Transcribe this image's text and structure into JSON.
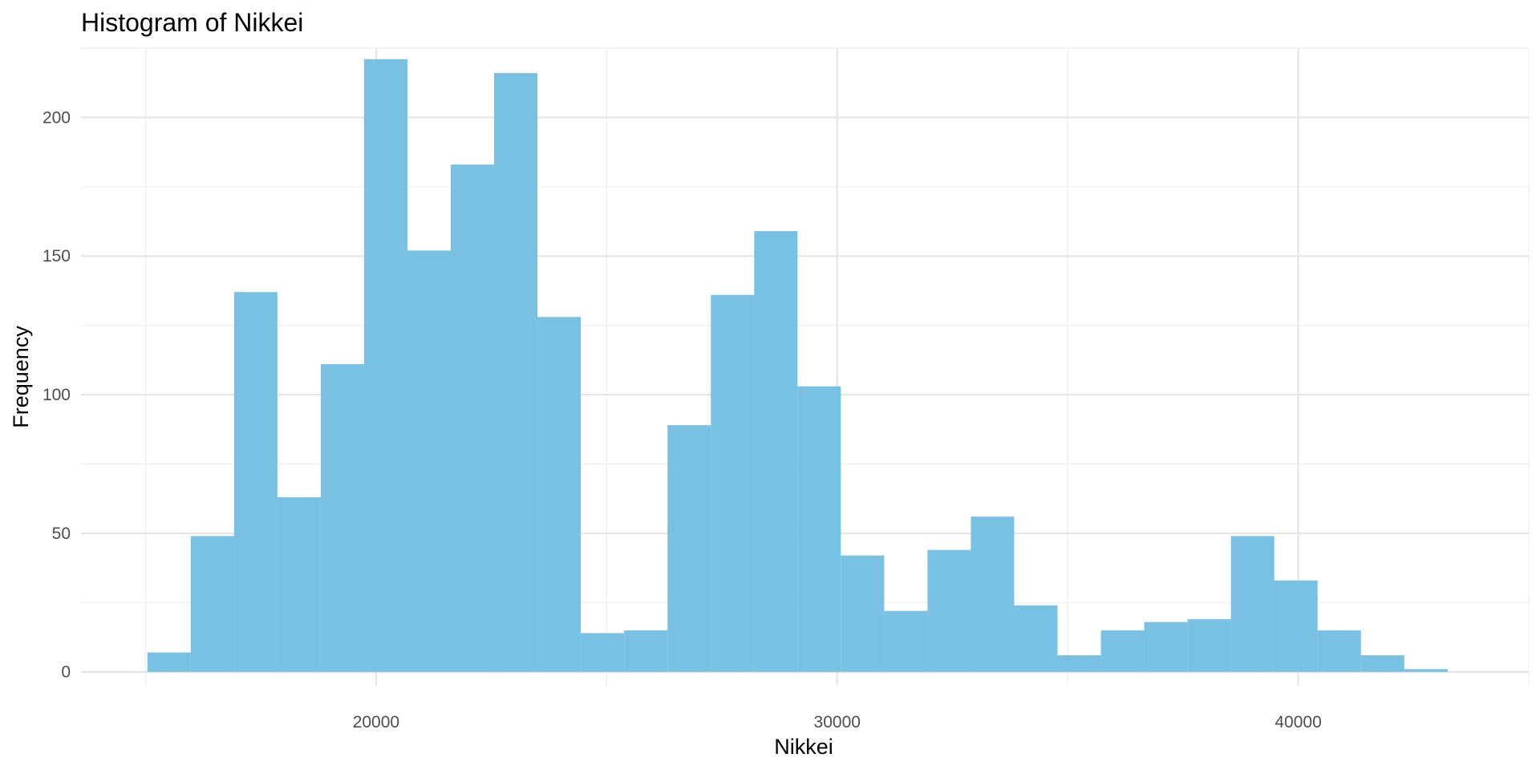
{
  "chart_data": {
    "type": "bar",
    "title": "Histogram of Nikkei",
    "xlabel": "Nikkei",
    "ylabel": "Frequency",
    "bar_color": "#78C1E3",
    "background": "#FFFFFF",
    "grid": true,
    "legend": "none",
    "xlim": [
      13600,
      45000
    ],
    "ylim": [
      -5,
      225
    ],
    "x_ticks": [
      20000,
      30000,
      40000
    ],
    "x_tick_labels": [
      "20000",
      "30000",
      "40000"
    ],
    "y_ticks": [
      0,
      50,
      100,
      150,
      200
    ],
    "y_tick_labels": [
      "0",
      "50",
      "100",
      "150",
      "200"
    ],
    "bin_width": 940,
    "bins": [
      {
        "start": 15040,
        "end": 15980,
        "count": 7
      },
      {
        "start": 15980,
        "end": 16920,
        "count": 49
      },
      {
        "start": 16920,
        "end": 17860,
        "count": 137
      },
      {
        "start": 17860,
        "end": 18800,
        "count": 63
      },
      {
        "start": 18800,
        "end": 19740,
        "count": 111
      },
      {
        "start": 19740,
        "end": 20680,
        "count": 221
      },
      {
        "start": 20680,
        "end": 21620,
        "count": 152
      },
      {
        "start": 21620,
        "end": 22560,
        "count": 183
      },
      {
        "start": 22560,
        "end": 23500,
        "count": 216
      },
      {
        "start": 23500,
        "end": 24440,
        "count": 128
      },
      {
        "start": 24440,
        "end": 25380,
        "count": 14
      },
      {
        "start": 25380,
        "end": 26320,
        "count": 15
      },
      {
        "start": 26320,
        "end": 27260,
        "count": 89
      },
      {
        "start": 27260,
        "end": 28200,
        "count": 136
      },
      {
        "start": 28200,
        "end": 29140,
        "count": 159
      },
      {
        "start": 29140,
        "end": 30080,
        "count": 103
      },
      {
        "start": 30080,
        "end": 31020,
        "count": 42
      },
      {
        "start": 31020,
        "end": 31960,
        "count": 22
      },
      {
        "start": 31960,
        "end": 32900,
        "count": 44
      },
      {
        "start": 32900,
        "end": 33840,
        "count": 56
      },
      {
        "start": 33840,
        "end": 34780,
        "count": 24
      },
      {
        "start": 34780,
        "end": 35720,
        "count": 6
      },
      {
        "start": 35720,
        "end": 36660,
        "count": 15
      },
      {
        "start": 36660,
        "end": 37600,
        "count": 18
      },
      {
        "start": 37600,
        "end": 38540,
        "count": 19
      },
      {
        "start": 38540,
        "end": 39480,
        "count": 49
      },
      {
        "start": 39480,
        "end": 40420,
        "count": 33
      },
      {
        "start": 40420,
        "end": 41360,
        "count": 15
      },
      {
        "start": 41360,
        "end": 42300,
        "count": 6
      },
      {
        "start": 42300,
        "end": 43240,
        "count": 1
      }
    ]
  }
}
